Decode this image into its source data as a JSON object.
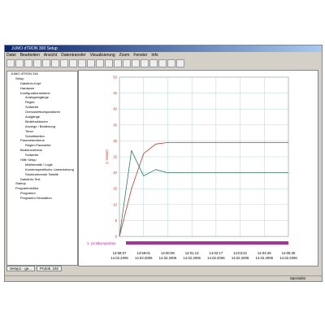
{
  "window": {
    "title": "JUMO dTRON 300 Setup",
    "menu": [
      "Datei",
      "Bearbeiten",
      "Ansicht",
      "Datentransfer",
      "Visualisierung",
      "Zoom",
      "Fenster",
      "Info"
    ],
    "tree": [
      "JUMO dTRON 316",
      "Setup",
      "Dateiinfo-Kopf",
      "Hardware",
      "Konfigurationsebene",
      "Analogeingänge",
      "Regler",
      "Sollwerte",
      "Grenzwertkomparatoren",
      "Ausgänge",
      "Binärfunktionen",
      "Anzeige / Bedienung",
      "Timer",
      "Schnittstellen",
      "Parameterebene",
      "Regler-Parameter",
      "Bedienerebene",
      "Sollwerte",
      "Hilfe Setup",
      "Mathematik / Logik",
      "Kundenspezifische Linearisierung",
      "Strukturierende Tabelle",
      "Dateiinfo-Text",
      "Startup",
      "Programmeditor",
      "Programm",
      "Programm-Simulation"
    ],
    "tabs": [
      "Setup1 - ge...",
      "Protok. 192"
    ],
    "status": "Spezialist"
  },
  "chart_data": {
    "type": "line",
    "y_label": "1. Istwert",
    "band_label": "1. Limitkomparator",
    "categories": [
      "13:58:07",
      null,
      "13:59:01",
      null,
      "14:00:08",
      null,
      "14:01:13",
      null,
      "14:02:17",
      null,
      "14:03:22",
      null,
      "14:04:26",
      null,
      "14:05:30"
    ],
    "dates": [
      "14.02.2006",
      null,
      "14.02.2006",
      null,
      "14.02.2006",
      null,
      "14.02.2006",
      null,
      "14.02.2006",
      null,
      "14.02.2006",
      null,
      "14.02.2006",
      null,
      "14.02.2006"
    ],
    "ylim": [
      0,
      50
    ],
    "yticks": [
      0,
      5,
      10,
      15,
      20,
      25,
      30,
      35,
      40,
      45,
      50
    ],
    "grid": true,
    "series": [
      {
        "name": "Istwert",
        "color": "#c0392b",
        "values": [
          0,
          15,
          26,
          29,
          29.5,
          29.5,
          29.5,
          29.5,
          29.5,
          29.5,
          29.5,
          29.5,
          29.5,
          29.5,
          29.5
        ]
      },
      {
        "name": "Regler",
        "color": "#2e7d5b",
        "values": [
          0,
          27,
          19,
          21,
          20,
          20,
          20,
          20,
          20,
          20,
          20,
          20,
          20,
          20,
          20
        ]
      }
    ],
    "band_color": "#b0309a"
  }
}
